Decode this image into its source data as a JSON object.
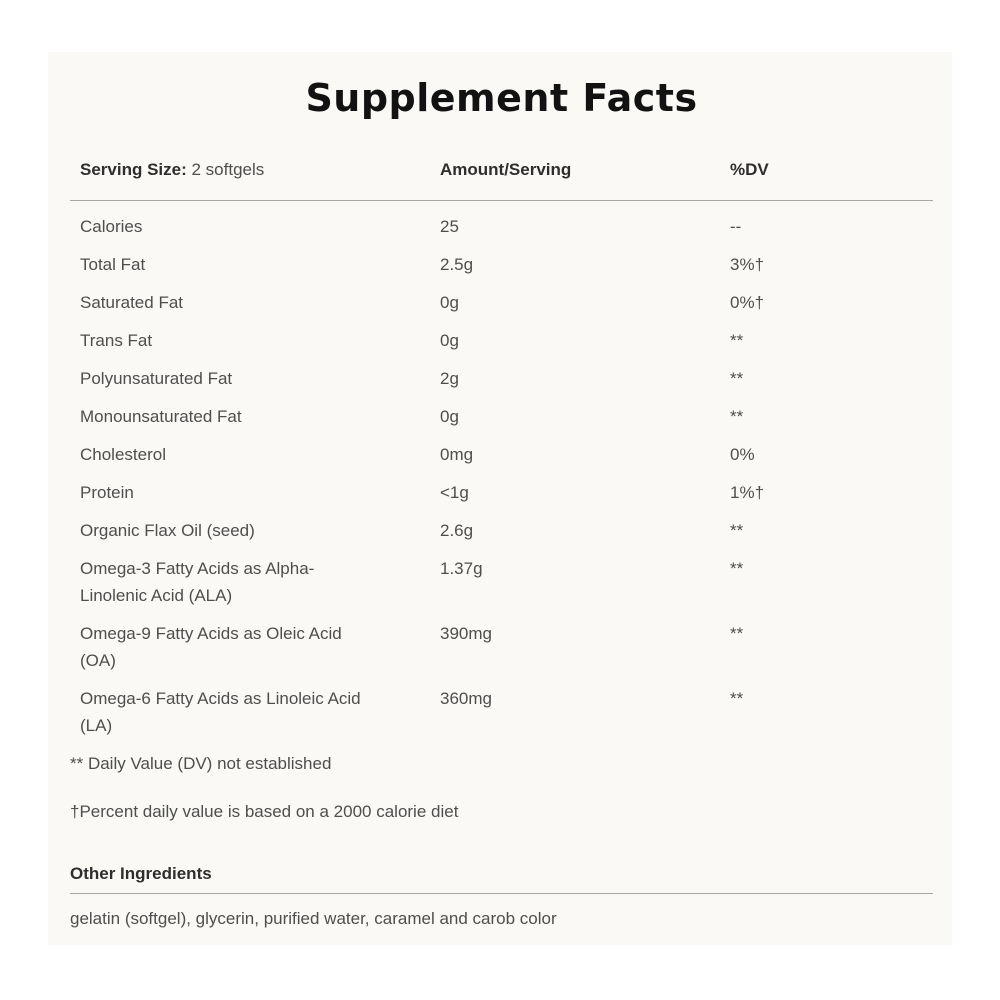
{
  "title": "Supplement Facts",
  "header": {
    "serving_size_label": "Serving Size:",
    "serving_size_value": " 2 softgels",
    "amount_label": "Amount/Serving",
    "dv_label": "%DV"
  },
  "rows": [
    {
      "name": "Calories",
      "amount": "25",
      "dv": "--"
    },
    {
      "name": "Total Fat",
      "amount": "2.5g",
      "dv": "3%†"
    },
    {
      "name": "Saturated Fat",
      "amount": "0g",
      "dv": "0%†"
    },
    {
      "name": "Trans Fat",
      "amount": "0g",
      "dv": "**"
    },
    {
      "name": "Polyunsaturated Fat",
      "amount": "2g",
      "dv": "**"
    },
    {
      "name": "Monounsaturated Fat",
      "amount": "0g",
      "dv": "**"
    },
    {
      "name": "Cholesterol",
      "amount": "0mg",
      "dv": "0%"
    },
    {
      "name": "Protein",
      "amount": "<1g",
      "dv": "1%†"
    },
    {
      "name": "Organic Flax Oil (seed)",
      "amount": "2.6g",
      "dv": "**"
    },
    {
      "name": "Omega-3 Fatty Acids as Alpha-\nLinolenic Acid (ALA)",
      "amount": "1.37g",
      "dv": "**"
    },
    {
      "name": "Omega-9 Fatty Acids as Oleic Acid\n(OA)",
      "amount": "390mg",
      "dv": "**"
    },
    {
      "name": "Omega-6 Fatty Acids as Linoleic Acid\n(LA)",
      "amount": "360mg",
      "dv": "**"
    }
  ],
  "footnotes": {
    "dv_note": "** Daily Value (DV) not established",
    "percent_note": "†Percent daily value is based on a 2000 calorie diet"
  },
  "other_ingredients": {
    "heading": "Other Ingredients",
    "text": "gelatin (softgel), glycerin, purified water, caramel and carob color"
  },
  "colors": {
    "card_background": "#faf9f6",
    "body_text": "#4e4e4e",
    "heading_text": "#2e2e2e",
    "title_text": "#121212",
    "rule": "#a6a6a6"
  }
}
